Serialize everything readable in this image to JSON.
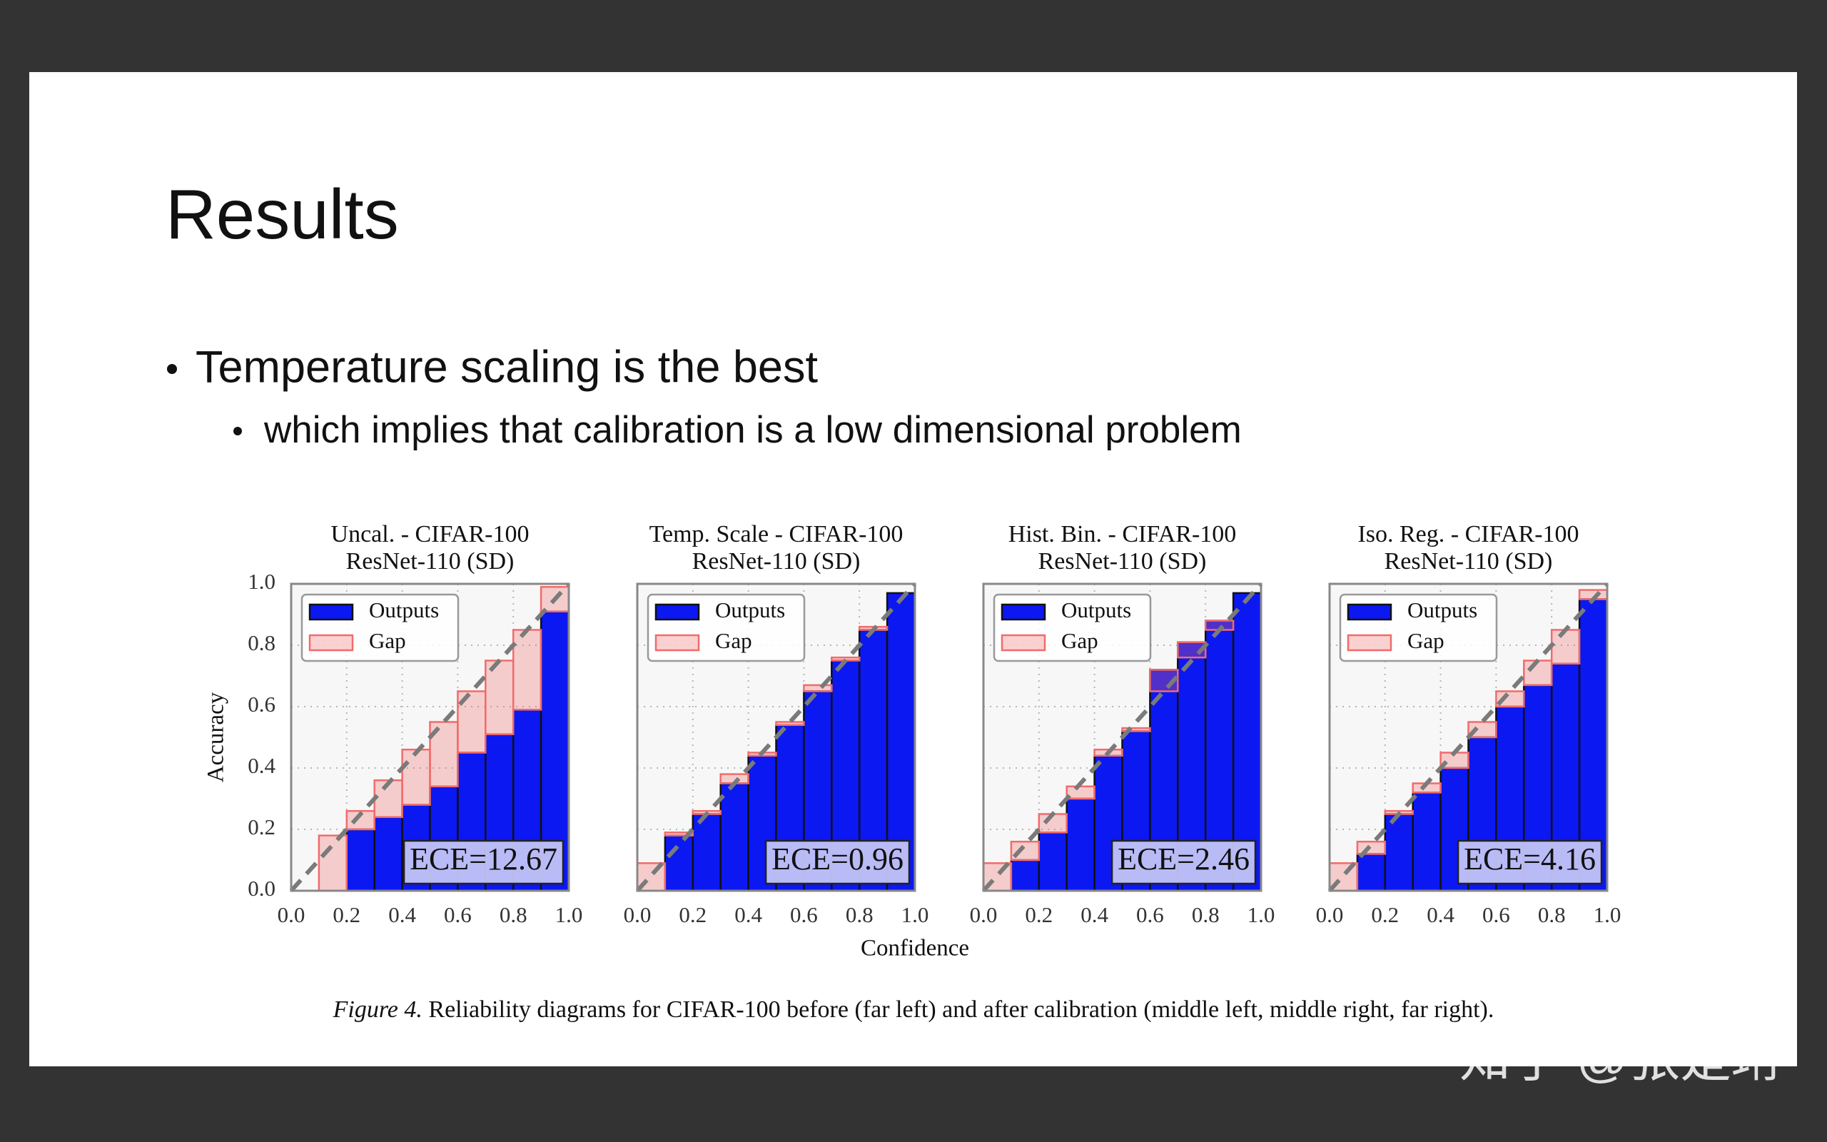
{
  "slide": {
    "title": "Results",
    "bullets": [
      {
        "text": "Temperature scaling is the best",
        "sub": [
          "which implies that calibration is a low dimensional problem"
        ]
      }
    ]
  },
  "figure": {
    "x_label": "Confidence",
    "caption_prefix": "Figure 4.",
    "caption": "Reliability diagrams for CIFAR-100 before (far left) and after calibration (middle left, middle right, far right)."
  },
  "watermark": "知乎 @张楚珩",
  "chart_data": [
    {
      "type": "histogram",
      "title": "Uncal. - CIFAR-100",
      "subtitle": "ResNet-110 (SD)",
      "y_label": "Accuracy",
      "ytick_labels": true,
      "bins": [
        0,
        0.1,
        0.2,
        0.3,
        0.4,
        0.5,
        0.6,
        0.7,
        0.8,
        0.9,
        1
      ],
      "series": [
        {
          "name": "Outputs",
          "color": "#0b18f2",
          "values": [
            0,
            0,
            0.2,
            0.24,
            0.28,
            0.34,
            0.45,
            0.51,
            0.59,
            0.91
          ]
        },
        {
          "name": "Gap",
          "color": "#f26b6b",
          "values": [
            0,
            0.18,
            0.26,
            0.36,
            0.46,
            0.55,
            0.65,
            0.75,
            0.85,
            0.99
          ]
        }
      ],
      "annotation": "ECE=12.67",
      "legend": "upper left",
      "grid": true,
      "xlim": [
        0,
        1
      ],
      "ylim": [
        0,
        1
      ],
      "xticks": [
        {
          "value": 0,
          "label": "0.0"
        },
        0.2,
        0.4,
        0.6,
        0.8,
        {
          "value": 1,
          "label": "1.0"
        }
      ],
      "yticks": [
        {
          "value": 0,
          "label": "0.0"
        },
        0.2,
        0.4,
        0.6,
        0.8,
        {
          "value": 1,
          "label": "1.0"
        }
      ]
    },
    {
      "type": "histogram",
      "title": "Temp. Scale - CIFAR-100",
      "subtitle": "ResNet-110 (SD)",
      "ytick_labels": false,
      "bins": [
        0,
        0.1,
        0.2,
        0.3,
        0.4,
        0.5,
        0.6,
        0.7,
        0.8,
        0.9,
        1
      ],
      "series": [
        {
          "name": "Outputs",
          "color": "#0b18f2",
          "values": [
            0,
            0.18,
            0.25,
            0.35,
            0.44,
            0.54,
            0.65,
            0.75,
            0.85,
            0.97
          ]
        },
        {
          "name": "Gap",
          "color": "#f26b6b",
          "values": [
            0.09,
            0.19,
            0.26,
            0.38,
            0.45,
            0.55,
            0.67,
            0.76,
            0.86,
            0.97
          ]
        }
      ],
      "annotation": "ECE=0.96",
      "legend": "upper left",
      "grid": true,
      "xlim": [
        0,
        1
      ],
      "ylim": [
        0,
        1
      ],
      "xticks": [
        {
          "value": 0,
          "label": "0.0"
        },
        0.2,
        0.4,
        0.6,
        0.8,
        {
          "value": 1,
          "label": "1.0"
        }
      ],
      "yticks": [
        0,
        0.2,
        0.4,
        0.6,
        0.8,
        1
      ]
    },
    {
      "type": "histogram",
      "title": "Hist. Bin. - CIFAR-100",
      "subtitle": "ResNet-110 (SD)",
      "ytick_labels": false,
      "bins": [
        0,
        0.1,
        0.2,
        0.3,
        0.4,
        0.5,
        0.6,
        0.7,
        0.8,
        0.9,
        1
      ],
      "series": [
        {
          "name": "Outputs",
          "color": "#0b18f2",
          "values": [
            0,
            0.1,
            0.19,
            0.3,
            0.44,
            0.52,
            0.72,
            0.81,
            0.88,
            0.97
          ]
        },
        {
          "name": "Gap",
          "color": "#f26b6b",
          "values": [
            0.09,
            0.16,
            0.25,
            0.34,
            0.46,
            0.53,
            0.65,
            0.76,
            0.85,
            0.97
          ]
        }
      ],
      "annotation": "ECE=2.46",
      "legend": "upper left",
      "grid": true,
      "xlim": [
        0,
        1
      ],
      "ylim": [
        0,
        1
      ],
      "xticks": [
        {
          "value": 0,
          "label": "0.0"
        },
        0.2,
        0.4,
        0.6,
        0.8,
        {
          "value": 1,
          "label": "1.0"
        }
      ],
      "yticks": [
        0,
        0.2,
        0.4,
        0.6,
        0.8,
        1
      ]
    },
    {
      "type": "histogram",
      "title": "Iso. Reg. - CIFAR-100",
      "subtitle": "ResNet-110 (SD)",
      "ytick_labels": false,
      "bins": [
        0,
        0.1,
        0.2,
        0.3,
        0.4,
        0.5,
        0.6,
        0.7,
        0.8,
        0.9,
        1
      ],
      "series": [
        {
          "name": "Outputs",
          "color": "#0b18f2",
          "values": [
            0,
            0.12,
            0.25,
            0.32,
            0.4,
            0.5,
            0.6,
            0.67,
            0.74,
            0.95
          ]
        },
        {
          "name": "Gap",
          "color": "#f26b6b",
          "values": [
            0.09,
            0.16,
            0.26,
            0.35,
            0.45,
            0.55,
            0.65,
            0.75,
            0.85,
            0.98
          ]
        }
      ],
      "annotation": "ECE=4.16",
      "legend": "upper left",
      "grid": true,
      "xlim": [
        0,
        1
      ],
      "ylim": [
        0,
        1
      ],
      "xticks": [
        {
          "value": 0,
          "label": "0.0"
        },
        0.2,
        0.4,
        0.6,
        0.8,
        {
          "value": 1,
          "label": "1.0"
        }
      ],
      "yticks": [
        0,
        0.2,
        0.4,
        0.6,
        0.8,
        1
      ]
    }
  ]
}
